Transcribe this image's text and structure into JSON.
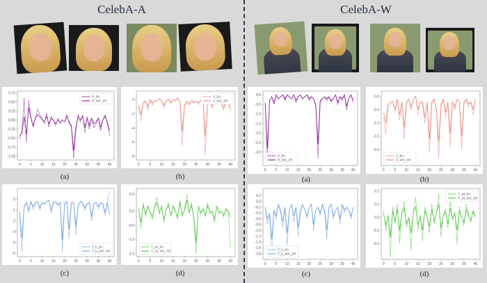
{
  "titles": {
    "left": "CelebA-A",
    "right": "CelebA-W"
  },
  "captions": [
    "(a)",
    "(b)",
    "(c)",
    "(d)"
  ],
  "colors": {
    "purple": "#8b2a96",
    "red": "#e8908a",
    "blue": "#7aa6e0",
    "green": "#58c94a"
  },
  "chart_data": [
    {
      "id": "A-a",
      "type": "line",
      "color": "#8b2a96",
      "ylim": [
        -1.1,
        0.8
      ],
      "xlim": [
        -1,
        42
      ],
      "yticks": [
        0.75,
        0.5,
        0.25,
        0.0,
        -0.25,
        -0.5,
        -0.75,
        -1.0
      ],
      "ytick_labels": [
        "0.75",
        "0.50",
        "0.25",
        "0.00",
        "-0.25",
        "-0.50",
        "-0.75",
        "-1.00"
      ],
      "xticks": [
        0,
        5,
        10,
        15,
        20,
        25,
        30,
        35,
        40
      ],
      "legend_pos": "top-right",
      "series": [
        {
          "name": "R_BA",
          "dashed": true,
          "values": [
            -0.5,
            -0.3,
            0.6,
            -0.6,
            0.55,
            0.1,
            -0.2,
            0.05,
            0.3,
            0.15,
            0.05,
            -0.1,
            0.2,
            -0.2,
            0.1,
            0.0,
            -0.15,
            0.05,
            -0.1,
            0.0,
            -0.05,
            0.15,
            -0.1,
            -0.2,
            -1.05,
            -0.3,
            0.15,
            -0.05,
            0.15,
            -0.35,
            0.1,
            -0.25,
            0.05,
            -0.2,
            -0.1,
            0.05,
            -0.3,
            0.0,
            0.15,
            -0.1,
            -0.45
          ]
        },
        {
          "name": "R_WS_SR",
          "dashed": false,
          "values": [
            -0.45,
            -0.35,
            0.1,
            -0.4,
            0.35,
            0.05,
            -0.15,
            0.05,
            0.15,
            0.1,
            0.0,
            -0.05,
            0.1,
            -0.1,
            0.05,
            0.0,
            -0.1,
            0.0,
            -0.05,
            0.0,
            -0.05,
            0.1,
            -0.05,
            -0.15,
            -0.85,
            -0.2,
            0.1,
            0.0,
            0.1,
            -0.2,
            0.05,
            -0.15,
            0.05,
            -0.1,
            -0.05,
            0.05,
            -0.2,
            0.0,
            0.1,
            -0.05,
            -0.3
          ]
        }
      ]
    },
    {
      "id": "A-b",
      "type": "line",
      "color": "#e8908a",
      "ylim": [
        -8.5,
        1.2
      ],
      "xlim": [
        -1,
        42
      ],
      "yticks": [
        0,
        -2,
        -4,
        -6,
        -8
      ],
      "ytick_labels": [
        "0",
        "-2",
        "-4",
        "-6",
        "-8"
      ],
      "xticks": [
        0,
        5,
        10,
        15,
        20,
        25,
        30,
        35,
        40
      ],
      "legend_pos": "top-right",
      "series": [
        {
          "name": "S_BA",
          "dashed": true,
          "values": [
            -1.0,
            -3.0,
            -0.5,
            -0.2,
            -1.5,
            0.0,
            -0.8,
            -0.1,
            -0.3,
            0.2,
            -0.1,
            -1.2,
            -0.3,
            0.1,
            -0.6,
            0.0,
            -0.2,
            0.3,
            -0.4,
            -6.5,
            -1.0,
            -0.3,
            -0.8,
            -0.1,
            -0.5,
            -0.2,
            -0.7,
            -0.1,
            0.1,
            -7.8,
            -0.5,
            -0.2,
            -1.2,
            -0.1,
            -0.4,
            0.0,
            -0.6,
            -1.5,
            -0.3,
            -0.5,
            -1.8
          ]
        },
        {
          "name": "S_WS_SR",
          "dashed": false,
          "values": [
            -0.8,
            -2.2,
            -0.4,
            -0.2,
            -1.0,
            0.0,
            -0.5,
            -0.1,
            -0.2,
            0.1,
            -0.1,
            -0.8,
            -0.2,
            0.1,
            -0.4,
            0.0,
            -0.1,
            0.2,
            -0.3,
            -4.5,
            -0.8,
            -0.2,
            -0.6,
            -0.1,
            -0.3,
            -0.2,
            -0.5,
            -0.1,
            0.1,
            -5.2,
            -0.4,
            -0.2,
            -0.9,
            -0.1,
            -0.3,
            0.0,
            -0.4,
            -1.1,
            -0.2,
            -0.4,
            -1.2
          ]
        }
      ]
    },
    {
      "id": "A-c",
      "type": "line",
      "color": "#7aa6e0",
      "ylim": [
        -5.3,
        1.0
      ],
      "xlim": [
        -1,
        42
      ],
      "yticks": [
        0,
        -1,
        -2,
        -3,
        -4,
        -5
      ],
      "ytick_labels": [
        "0",
        "-1",
        "-2",
        "-3",
        "-4",
        "-5"
      ],
      "xticks": [
        0,
        5,
        10,
        15,
        20,
        25,
        30,
        35,
        40
      ],
      "legend_pos": "bottom-right",
      "series": [
        {
          "name": "T_b_BA",
          "dashed": true,
          "values": [
            -1.5,
            -4.8,
            -0.8,
            -0.3,
            -1.2,
            -0.2,
            -0.9,
            -0.4,
            -0.2,
            -1.0,
            -0.3,
            -0.5,
            -0.2,
            -0.1,
            -1.3,
            -0.4,
            -0.2,
            -0.6,
            -0.3,
            -4.9,
            -0.5,
            -0.2,
            -3.6,
            -0.4,
            -0.3,
            -3.3,
            -0.7,
            -0.2,
            -0.4,
            -1.0,
            -0.5,
            -0.3,
            -2.0,
            -0.5,
            -0.3,
            -0.9,
            -0.4,
            -0.5,
            -1.5,
            -0.3,
            0.8
          ]
        },
        {
          "name": "T_b_WS_SR",
          "dashed": false,
          "values": [
            -1.2,
            -3.6,
            -0.7,
            -0.3,
            -1.0,
            -0.2,
            -0.7,
            -0.3,
            -0.2,
            -0.8,
            -0.3,
            -0.4,
            -0.2,
            -0.1,
            -1.0,
            -0.3,
            -0.2,
            -0.5,
            -0.3,
            -3.8,
            -0.4,
            -0.2,
            -2.8,
            -0.3,
            -0.3,
            -2.5,
            -0.6,
            -0.2,
            -0.3,
            -0.8,
            -0.4,
            -0.3,
            -1.6,
            -0.4,
            -0.3,
            -0.7,
            -0.3,
            -0.4,
            -1.2,
            -0.3,
            -1.4
          ]
        }
      ]
    },
    {
      "id": "A-d",
      "type": "line",
      "color": "#58c94a",
      "ylim": [
        -1.6,
        0.8
      ],
      "xlim": [
        -1,
        42
      ],
      "yticks": [
        0.6,
        0.0,
        -0.5,
        -1.0,
        -1.5
      ],
      "ytick_labels": [
        "0.6",
        "0.0",
        "-0.5",
        "-1.0",
        "-1.5"
      ],
      "xticks": [
        0,
        5,
        10,
        15,
        20,
        25,
        30,
        35,
        40
      ],
      "legend_pos": "bottom-left",
      "series": [
        {
          "name": "T_sd_BA",
          "dashed": true,
          "values": [
            0.1,
            -0.6,
            0.3,
            -0.2,
            0.2,
            0.0,
            -0.3,
            0.2,
            0.5,
            -0.1,
            0.2,
            -0.4,
            0.1,
            0.3,
            -0.2,
            0.2,
            0.0,
            -0.3,
            0.4,
            -0.2,
            0.1,
            0.6,
            -0.1,
            0.3,
            -0.3,
            -1.5,
            0.2,
            -0.1,
            0.1,
            -0.2,
            0.3,
            -0.1,
            0.0,
            -0.4,
            0.2,
            -0.1,
            0.0,
            -0.2,
            0.1,
            0.0,
            -1.3
          ]
        },
        {
          "name": "T_sd_WS_SR",
          "dashed": false,
          "values": [
            0.05,
            -0.4,
            0.2,
            -0.1,
            0.15,
            0.0,
            -0.2,
            0.15,
            0.3,
            -0.05,
            0.15,
            -0.3,
            0.05,
            0.2,
            -0.15,
            0.15,
            0.0,
            -0.2,
            0.3,
            -0.15,
            0.05,
            0.4,
            -0.05,
            0.2,
            -0.2,
            -1.1,
            0.15,
            -0.05,
            0.05,
            -0.15,
            0.2,
            -0.05,
            0.0,
            -0.3,
            0.15,
            -0.05,
            0.0,
            -0.15,
            0.05,
            0.0,
            -0.2
          ]
        }
      ]
    },
    {
      "id": "W-a",
      "type": "line",
      "color": "#8b2a96",
      "ylim": [
        -3.7,
        0.2
      ],
      "xlim": [
        -1,
        42
      ],
      "yticks": [
        0.0,
        -0.5,
        -1.0,
        -1.5,
        -2.0,
        -2.5,
        -3.0
      ],
      "ytick_labels": [
        "0.0",
        "-0.5",
        "-1.0",
        "-1.5",
        "-2.0",
        "-2.5",
        "-3.0"
      ],
      "xticks": [
        0,
        5,
        10,
        15,
        20,
        25,
        30,
        35,
        40
      ],
      "legend_pos": "bottom-left",
      "series": [
        {
          "name": "R_BA",
          "dashed": true,
          "values": [
            -0.5,
            -3.5,
            -0.3,
            -0.1,
            -0.5,
            0.0,
            -0.2,
            -0.1,
            0.0,
            -0.3,
            0.0,
            -0.1,
            -0.2,
            0.0,
            -0.4,
            -0.1,
            0.0,
            -0.2,
            -0.1,
            0.0,
            -0.3,
            -0.1,
            -0.2,
            -0.6,
            -3.3,
            -0.4,
            -0.2,
            -0.1,
            -0.3,
            -0.1,
            -0.4,
            -0.2,
            0.0,
            -0.5,
            -0.1,
            -0.3,
            0.0,
            -0.8,
            -0.2,
            0.0,
            -0.4
          ]
        },
        {
          "name": "R_WS_SR",
          "dashed": false,
          "values": [
            -0.4,
            -2.8,
            -0.3,
            -0.1,
            -0.4,
            0.0,
            -0.2,
            -0.1,
            0.0,
            -0.2,
            0.0,
            -0.1,
            -0.2,
            0.0,
            -0.3,
            -0.1,
            0.0,
            -0.2,
            -0.1,
            0.0,
            -0.2,
            -0.1,
            -0.2,
            -0.5,
            -2.6,
            -0.3,
            -0.2,
            -0.1,
            -0.2,
            -0.1,
            -0.3,
            -0.2,
            0.0,
            -0.4,
            -0.1,
            -0.2,
            0.0,
            -0.6,
            -0.2,
            0.0,
            -0.3
          ]
        }
      ]
    },
    {
      "id": "W-b",
      "type": "line",
      "color": "#e8908a",
      "ylim": [
        -2.6,
        0.2
      ],
      "xlim": [
        -1,
        42
      ],
      "yticks": [
        0.0,
        -0.5,
        -1.0,
        -1.5,
        -2.0
      ],
      "ytick_labels": [
        "0.0",
        "-0.5",
        "-1.0",
        "-1.5",
        "-2.0"
      ],
      "xticks": [
        0,
        5,
        10,
        15,
        20,
        25,
        30,
        35,
        40
      ],
      "legend_pos": "bottom-left",
      "series": [
        {
          "name": "S_BA",
          "dashed": true,
          "values": [
            -0.8,
            -1.4,
            -0.4,
            -0.3,
            -0.2,
            -0.6,
            -0.1,
            -0.9,
            -0.2,
            -1.6,
            -0.3,
            -0.1,
            -0.5,
            -0.1,
            0.0,
            -0.7,
            -0.2,
            -0.3,
            -1.0,
            -0.2,
            -2.1,
            -0.3,
            -0.1,
            -0.6,
            -2.3,
            -0.4,
            -0.1,
            -0.8,
            -0.3,
            -1.9,
            -0.2,
            -0.5,
            -0.1,
            -0.2,
            -2.0,
            -0.3,
            -0.1,
            -0.4,
            -0.2,
            -0.7,
            -0.1
          ]
        },
        {
          "name": "S_WS_SR",
          "dashed": false,
          "values": [
            -0.6,
            -1.0,
            -0.3,
            -0.2,
            -0.2,
            -0.5,
            -0.1,
            -0.7,
            -0.2,
            -1.2,
            -0.2,
            -0.1,
            -0.4,
            -0.1,
            0.0,
            -0.5,
            -0.2,
            -0.2,
            -0.8,
            -0.2,
            -1.6,
            -0.2,
            -0.1,
            -0.5,
            -1.7,
            -0.3,
            -0.1,
            -0.6,
            -0.2,
            -1.4,
            -0.2,
            -0.4,
            -0.1,
            -0.2,
            -1.5,
            -0.2,
            -0.1,
            -0.3,
            -0.2,
            -0.5,
            -0.1
          ]
        }
      ]
    },
    {
      "id": "W-c",
      "type": "line",
      "color": "#7aa6e0",
      "ylim": [
        -2.0,
        0.45
      ],
      "xlim": [
        -1,
        42
      ],
      "yticks": [
        0.2,
        0.0,
        -0.2,
        -0.4,
        -0.6,
        -0.8,
        -1.0,
        -1.2,
        -1.4,
        -1.6,
        -1.8
      ],
      "ytick_labels": [
        "0.2",
        "0.0",
        "-0.2",
        "-0.4",
        "-0.6",
        "-0.8",
        "-1.0",
        "-1.2",
        "-1.4",
        "-1.6",
        "-1.8"
      ],
      "xticks": [
        0,
        5,
        10,
        15,
        20,
        25,
        30,
        35,
        40
      ],
      "legend_pos": "bottom-left",
      "series": [
        {
          "name": "T_b_BA",
          "dashed": true,
          "values": [
            -0.2,
            -0.8,
            -0.5,
            -1.8,
            -0.3,
            -0.6,
            -0.1,
            -0.4,
            -0.9,
            -0.2,
            -1.5,
            -0.3,
            -0.1,
            -0.7,
            -0.2,
            -1.2,
            -0.4,
            -0.1,
            -0.3,
            -0.6,
            -0.2,
            -0.1,
            -1.0,
            -0.3,
            -0.2,
            -0.5,
            -0.1,
            -0.4,
            -1.3,
            -0.2,
            -0.1,
            -0.6,
            -0.3,
            -0.2,
            -0.8,
            -0.1,
            -0.4,
            -0.2,
            -0.3,
            -0.6,
            -0.2
          ]
        },
        {
          "name": "T_b_WS_SR",
          "dashed": false,
          "values": [
            -0.2,
            -0.6,
            -0.4,
            -1.3,
            -0.3,
            -0.5,
            -0.1,
            -0.3,
            -0.7,
            -0.2,
            -1.1,
            -0.3,
            -0.1,
            -0.5,
            -0.2,
            -0.9,
            -0.3,
            -0.1,
            -0.3,
            -0.5,
            -0.2,
            -0.1,
            -0.8,
            -0.3,
            -0.2,
            -0.4,
            -0.1,
            -0.3,
            -1.0,
            -0.2,
            -0.1,
            -0.5,
            -0.3,
            -0.2,
            -0.6,
            -0.1,
            -0.3,
            -0.2,
            -0.3,
            -0.5,
            -0.2
          ]
        }
      ]
    },
    {
      "id": "W-d",
      "type": "line",
      "color": "#58c94a",
      "ylim": [
        -0.32,
        0.22
      ],
      "xlim": [
        -1,
        42
      ],
      "yticks": [
        0.2,
        0.1,
        0.0,
        -0.1,
        -0.2
      ],
      "ytick_labels": [
        "0.2",
        "0.1",
        "0.0",
        "-0.1",
        "-0.2"
      ],
      "xticks": [
        0,
        5,
        10,
        15,
        20,
        25,
        30,
        35,
        40
      ],
      "legend_pos": "top-right",
      "series": [
        {
          "name": "T_sd_BA",
          "dashed": true,
          "values": [
            0.05,
            -0.1,
            0.02,
            -0.3,
            0.08,
            -0.05,
            0.1,
            -0.2,
            0.04,
            0.12,
            -0.08,
            0.0,
            -0.25,
            0.06,
            0.15,
            -0.1,
            0.02,
            -0.18,
            0.08,
            0.0,
            -0.12,
            0.1,
            -0.05,
            0.04,
            0.18,
            -0.15,
            0.02,
            0.06,
            -0.08,
            0.12,
            -0.02,
            0.04,
            -0.2,
            0.08,
            0.0,
            -0.06,
            0.1,
            0.02,
            -0.04,
            0.06,
            0.0
          ]
        },
        {
          "name": "T_sd_WS_SR",
          "dashed": false,
          "values": [
            0.03,
            -0.06,
            0.01,
            -0.15,
            0.05,
            -0.03,
            0.06,
            -0.1,
            0.03,
            0.07,
            -0.05,
            0.0,
            -0.12,
            0.04,
            0.08,
            -0.06,
            0.01,
            -0.1,
            0.05,
            0.0,
            -0.07,
            0.06,
            -0.03,
            0.03,
            0.1,
            -0.08,
            0.01,
            0.04,
            -0.05,
            0.07,
            -0.01,
            0.03,
            -0.1,
            0.05,
            0.0,
            -0.04,
            0.06,
            0.01,
            -0.02,
            0.04,
            0.0
          ]
        }
      ]
    }
  ]
}
